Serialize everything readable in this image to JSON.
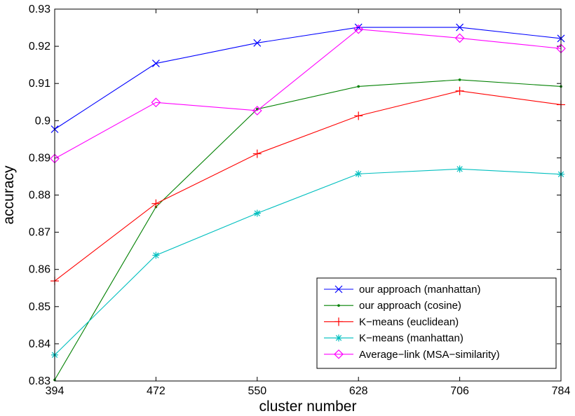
{
  "chart_data": {
    "type": "line",
    "xlabel": "cluster number",
    "ylabel": "accuracy",
    "x": [
      394,
      472,
      550,
      628,
      706,
      784
    ],
    "xlim": [
      394,
      784
    ],
    "ylim": [
      0.83,
      0.93
    ],
    "x_ticks": [
      "394",
      "472",
      "550",
      "628",
      "706",
      "784"
    ],
    "y_ticks": [
      "0.83",
      "0.84",
      "0.85",
      "0.86",
      "0.87",
      "0.88",
      "0.89",
      "0.9",
      "0.91",
      "0.92",
      "0.93"
    ],
    "y_tick_values": [
      0.83,
      0.84,
      0.85,
      0.86,
      0.87,
      0.88,
      0.89,
      0.9,
      0.91,
      0.92,
      0.93
    ],
    "grid": false,
    "legend_position": "bottom-right",
    "series": [
      {
        "name": "our approach (manhattan)",
        "color": "#0000ff",
        "marker": "x",
        "values": [
          0.8977,
          0.9154,
          0.9209,
          0.9251,
          0.9251,
          0.9221
        ]
      },
      {
        "name": "our approach (cosine)",
        "color": "#008000",
        "marker": "dot",
        "values": [
          0.8303,
          0.8768,
          0.9031,
          0.9092,
          0.911,
          0.9092
        ]
      },
      {
        "name": "K−means (euclidean)",
        "color": "#ff0000",
        "marker": "plus",
        "values": [
          0.8569,
          0.8777,
          0.8911,
          0.9013,
          0.908,
          0.9043
        ]
      },
      {
        "name": "K−means (manhattan)",
        "color": "#00bfbf",
        "marker": "star",
        "values": [
          0.837,
          0.8638,
          0.8751,
          0.8857,
          0.887,
          0.8856
        ]
      },
      {
        "name": "Average−link (MSA−similarity)",
        "color": "#ff00ff",
        "marker": "diamond",
        "values": [
          0.8898,
          0.9049,
          0.9027,
          0.9246,
          0.9222,
          0.9194
        ]
      }
    ]
  }
}
